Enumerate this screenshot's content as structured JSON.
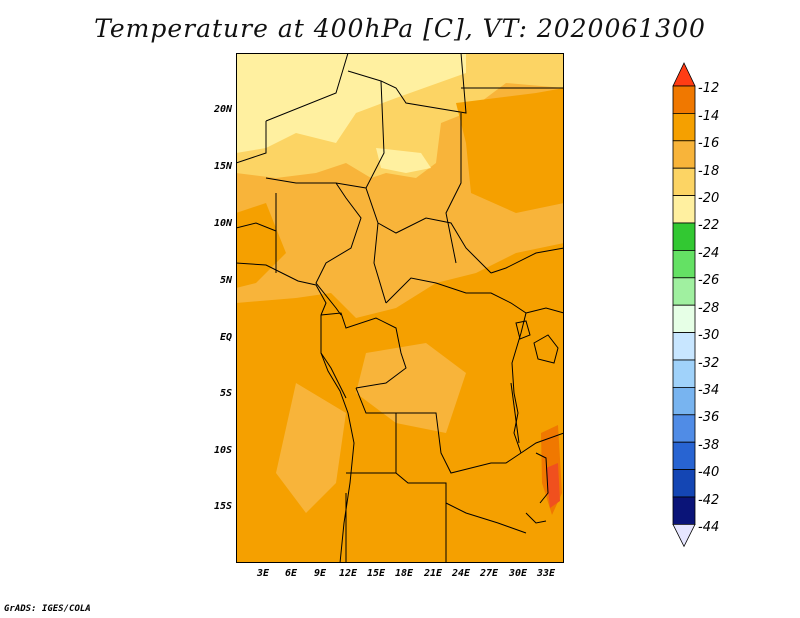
{
  "title": "Temperature at 400hPa [C], VT: 2020061300",
  "credit": "GrADS: IGES/COLA",
  "map": {
    "lat_labels": [
      "20N",
      "15N",
      "10N",
      "5N",
      "EQ",
      "5S",
      "10S",
      "15S"
    ],
    "lon_labels": [
      "3E",
      "6E",
      "9E",
      "12E",
      "15E",
      "18E",
      "21E",
      "24E",
      "27E",
      "30E",
      "33E"
    ]
  },
  "colorbar": {
    "labels": [
      "-12",
      "-14",
      "-16",
      "-18",
      "-20",
      "-22",
      "-24",
      "-26",
      "-28",
      "-30",
      "-32",
      "-34",
      "-36",
      "-38",
      "-40",
      "-42",
      "-44"
    ],
    "colors": [
      "#f0501e",
      "#f07800",
      "#f5a000",
      "#f8b43a",
      "#fcd464",
      "#fff0a0",
      "#32c832",
      "#64e164",
      "#a0f0a0",
      "#e6ffe6",
      "#c8e6ff",
      "#a0d2fa",
      "#78b4f0",
      "#508ce6",
      "#2864d2",
      "#1446b4",
      "#0a1478"
    ],
    "top_cap_color": "#ff3c14",
    "bottom_cap_color": "#e6e6ff"
  }
}
